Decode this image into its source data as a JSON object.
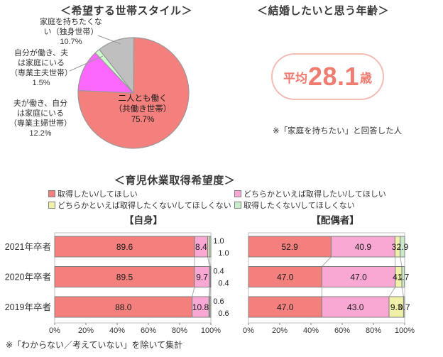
{
  "household": {
    "title": "＜希望する世帯スタイル＞"
  },
  "marriage": {
    "title": "＜結婚したいと思う年齢＞",
    "avg_prefix": "平均",
    "avg_value": "28.1",
    "avg_suffix": "歳",
    "note": "※「家庭を持ちたい」と回答した人"
  },
  "childcare": {
    "title": "＜育児休業取得希望度＞",
    "footnote": "※「わからない／考えていない」を除いて集計"
  },
  "colors": {
    "accent_coral": "#EE7C71",
    "pill_border": "#F3BDB5",
    "bar_border": "#7F7F7F",
    "frame_gray": "#BFBFBF"
  },
  "chart_data": [
    {
      "type": "pie",
      "title": "＜希望する世帯スタイル＞",
      "start_angle": "top",
      "direction": "clockwise",
      "slices": [
        {
          "label": "二人とも働く\n（共働き世帯）\n75.7%",
          "value": 75.7,
          "color": "#F4807D"
        },
        {
          "label": "夫が働き、自分\nは家庭にいる\n（専業主婦世帯）\n12.2%",
          "value": 12.2,
          "color": "#FC68FC"
        },
        {
          "label": "自分が働き、夫\nは家庭にいる\n（専業主夫世帯）\n1.5%",
          "value": 1.5,
          "color": "#CCFFCC"
        },
        {
          "label": "家庭を持ちたくな\nい（独身世帯）\n10.7%",
          "value": 10.7,
          "color": "#BFBFBF"
        }
      ]
    },
    {
      "type": "stacked_bar_h",
      "title": "【自身】",
      "categories": [
        "2021年卒者",
        "2020年卒者",
        "2019年卒者"
      ],
      "series": [
        {
          "name": "取得したい/してほしい",
          "color": "#F4807D",
          "values": [
            89.6,
            89.5,
            88.0
          ]
        },
        {
          "name": "どちらかといえば取得したい/してほしい",
          "color": "#F8A8D3",
          "values": [
            8.4,
            9.7,
            10.8
          ]
        },
        {
          "name": "どちらかといえば取得したくない/してほしくない",
          "color": "#F0F0A8",
          "values": [
            1.0,
            0.4,
            0.6
          ]
        },
        {
          "name": "取得したくない/してほしくない",
          "color": "#CBEAC9",
          "values": [
            1.0,
            0.4,
            0.6
          ]
        }
      ],
      "xticks": [
        "0%",
        "20%",
        "40%",
        "60%",
        "80%",
        "100%"
      ],
      "xlim": [
        0,
        100
      ],
      "tiny_label_style": "stacked",
      "legend_position": "top"
    },
    {
      "type": "stacked_bar_h",
      "title": "【配偶者】",
      "categories": [
        "2021年卒者",
        "2020年卒者",
        "2019年卒者"
      ],
      "series": [
        {
          "name": "取得したい/してほしい",
          "color": "#F4807D",
          "values": [
            52.9,
            47.0,
            47.0
          ]
        },
        {
          "name": "どちらかといえば取得したい/してほしい",
          "color": "#F8A8D3",
          "values": [
            40.9,
            47.0,
            43.0
          ]
        },
        {
          "name": "どちらかといえば取得したくない/してほしくない",
          "color": "#F0F0A8",
          "values": [
            3.3,
            4.2,
            9.3
          ]
        },
        {
          "name": "取得したくない/してほしくない",
          "color": "#CBEAC9",
          "values": [
            2.9,
            1.7,
            0.7
          ]
        }
      ],
      "xticks": [
        "0%",
        "20%",
        "40%",
        "60%",
        "80%",
        "100%"
      ],
      "xlim": [
        0,
        100
      ],
      "tiny_label_style": "inline",
      "legend_position": "top"
    }
  ]
}
